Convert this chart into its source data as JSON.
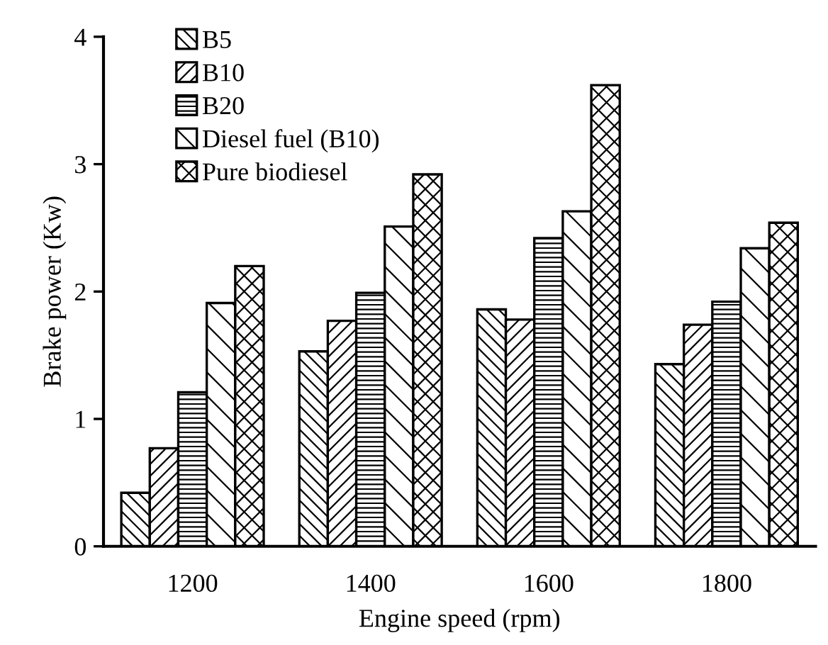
{
  "chart_data": {
    "type": "bar",
    "xlabel": "Engine speed (rpm)",
    "ylabel": "Brake power (Kw)",
    "categories": [
      "1200",
      "1400",
      "1600",
      "1800"
    ],
    "series": [
      {
        "name": "B5",
        "color": "#000000",
        "values": [
          0.42,
          1.53,
          1.86,
          1.43
        ]
      },
      {
        "name": "B10",
        "color": "#000000",
        "values": [
          0.77,
          1.77,
          1.78,
          1.74
        ]
      },
      {
        "name": "B20",
        "color": "#000000",
        "values": [
          1.21,
          1.99,
          2.42,
          1.92
        ]
      },
      {
        "name": "Diesel fuel (B10)",
        "color": "#000000",
        "values": [
          1.91,
          2.51,
          2.63,
          2.34
        ]
      },
      {
        "name": "Pure biodiesel",
        "color": "#000000",
        "values": [
          2.2,
          2.92,
          3.62,
          2.54
        ]
      }
    ],
    "ylim": [
      0,
      4
    ],
    "yticks": [
      0,
      1,
      2,
      3,
      4
    ],
    "grid": false,
    "legend": "top left"
  }
}
